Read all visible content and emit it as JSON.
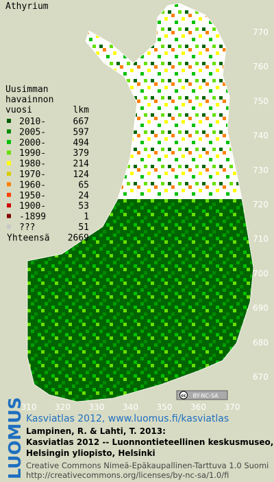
{
  "title": "Athyrium",
  "legend": {
    "header": [
      "Uusimman",
      "havainnon",
      "vuosi"
    ],
    "count_header": "lkm",
    "items": [
      {
        "label": "2010-",
        "count": 667,
        "color": "#005c00"
      },
      {
        "label": "2005-",
        "count": 597,
        "color": "#008a00"
      },
      {
        "label": "2000-",
        "count": 494,
        "color": "#00c000"
      },
      {
        "label": "1990-",
        "count": 379,
        "color": "#66e000"
      },
      {
        "label": "1980-",
        "count": 214,
        "color": "#ffff00"
      },
      {
        "label": "1970-",
        "count": 124,
        "color": "#d8cc00"
      },
      {
        "label": "1960-",
        "count": 65,
        "color": "#ff8000"
      },
      {
        "label": "1950-",
        "count": 24,
        "color": "#ff4000"
      },
      {
        "label": "1900-",
        "count": 53,
        "color": "#cc0000"
      },
      {
        "label": "-1899",
        "count": 1,
        "color": "#800000"
      },
      {
        "label": "???",
        "count": 51,
        "color": "#c8c8c8"
      }
    ],
    "total_label": "Yhteensä",
    "total": 2669
  },
  "axes": {
    "xticks": [
      310,
      320,
      330,
      340,
      350,
      360,
      370
    ],
    "yticks": [
      670,
      680,
      690,
      700,
      710,
      720,
      730,
      740,
      750,
      760,
      770
    ]
  },
  "badge": {
    "icon": "cc",
    "text": "BY-NC-SA"
  },
  "logo": "LUOMUS",
  "credits": {
    "link": "Kasviatlas 2012, www.luomus.fi/kasviatlas",
    "citation": [
      "Lampinen, R. & Lahti, T. 2013:",
      "Kasviatlas 2012 -- Luonnontieteellinen keskusmuseo,",
      "Helsingin yliopisto, Helsinki"
    ],
    "license": [
      "Creative Commons Nimeä-Epäkaupallinen-Tarttuva 1.0 Suomi",
      "http://creativecommons.org/licenses/by-nc-sa/1.0/fi"
    ]
  }
}
